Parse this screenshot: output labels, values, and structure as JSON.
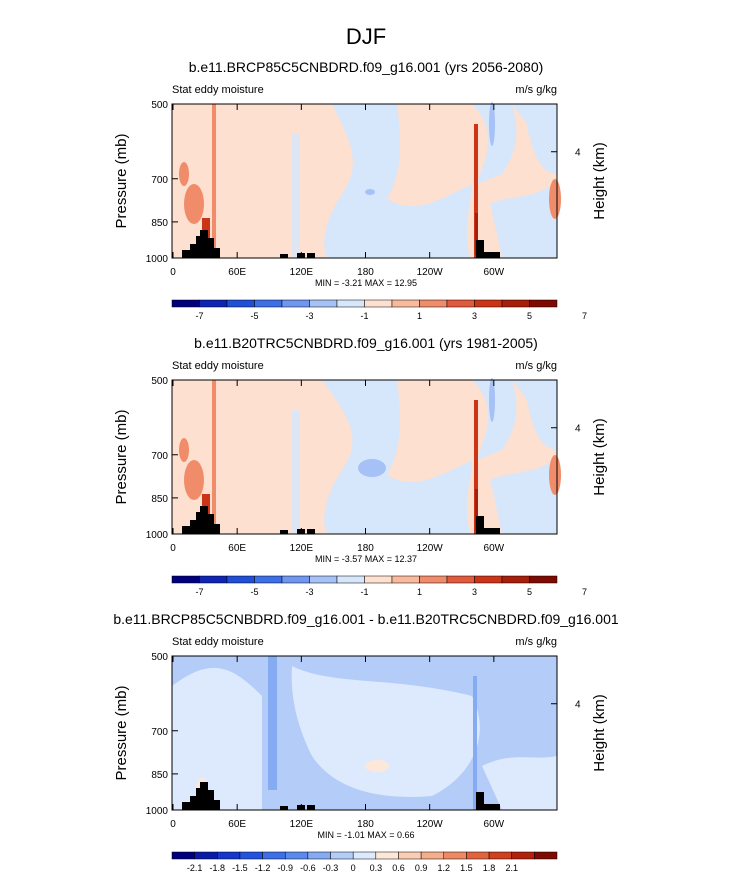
{
  "figure_title": "DJF",
  "chart_data": [
    {
      "type": "heatmap",
      "title": "b.e11.BRCP85C5CNBDRD.f09_g16.001 (yrs 2056-2080)",
      "left_subtitle": "Stat eddy moisture",
      "right_subtitle": "m/s g/kg",
      "ylabel": "Pressure (mb)",
      "y2label": "Height (km)",
      "y_ticks": [
        "500",
        "700",
        "850",
        "1000"
      ],
      "y2_ticks": [
        "4"
      ],
      "x_ticks": [
        "0",
        "60E",
        "120E",
        "180",
        "120W",
        "60W"
      ],
      "stats": "MIN = -3.21 MAX = 12.95",
      "colorbar_labels": [
        "-7",
        "-5",
        "-3",
        "-1",
        "1",
        "3",
        "5",
        "7"
      ],
      "colors": [
        "#00007f",
        "#0d24b4",
        "#1f4ed8",
        "#3d6fe9",
        "#6f96f1",
        "#a6c1f6",
        "#d6e6fb",
        "#fde0cf",
        "#f8b99c",
        "#f08c6a",
        "#e25a3c",
        "#cc3417",
        "#a81e0a",
        "#7f0a02"
      ]
    },
    {
      "type": "heatmap",
      "title": "b.e11.B20TRC5CNBDRD.f09_g16.001 (yrs 1981-2005)",
      "left_subtitle": "Stat eddy moisture",
      "right_subtitle": "m/s g/kg",
      "ylabel": "Pressure (mb)",
      "y2label": "Height (km)",
      "y_ticks": [
        "500",
        "700",
        "850",
        "1000"
      ],
      "y2_ticks": [
        "4"
      ],
      "x_ticks": [
        "0",
        "60E",
        "120E",
        "180",
        "120W",
        "60W"
      ],
      "stats": "MIN = -3.57 MAX = 12.37",
      "colorbar_labels": [
        "-7",
        "-5",
        "-3",
        "-1",
        "1",
        "3",
        "5",
        "7"
      ],
      "colors": [
        "#00007f",
        "#0d24b4",
        "#1f4ed8",
        "#3d6fe9",
        "#6f96f1",
        "#a6c1f6",
        "#d6e6fb",
        "#fde0cf",
        "#f8b99c",
        "#f08c6a",
        "#e25a3c",
        "#cc3417",
        "#a81e0a",
        "#7f0a02"
      ]
    },
    {
      "type": "heatmap",
      "title": "b.e11.BRCP85C5CNBDRD.f09_g16.001 - b.e11.B20TRC5CNBDRD.f09_g16.001",
      "left_subtitle": "Stat eddy moisture",
      "right_subtitle": "m/s g/kg",
      "ylabel": "Pressure (mb)",
      "y2label": "Height (km)",
      "y_ticks": [
        "500",
        "700",
        "850",
        "1000"
      ],
      "y2_ticks": [
        "4"
      ],
      "x_ticks": [
        "0",
        "60E",
        "120E",
        "180",
        "120W",
        "60W"
      ],
      "stats": "MIN = -1.01 MAX = 0.66",
      "colorbar_labels": [
        "-2.1",
        "-1.8",
        "-1.5",
        "-1.2",
        "-0.9",
        "-0.6",
        "-0.3",
        "0",
        "0.3",
        "0.6",
        "0.9",
        "1.2",
        "1.5",
        "1.8",
        "2.1"
      ],
      "colors": [
        "#00007f",
        "#0a1aa8",
        "#1436cc",
        "#2452e0",
        "#3d6fe9",
        "#5a8aef",
        "#85abf3",
        "#b3cdf8",
        "#dde9fc",
        "#fde7d8",
        "#fbcdb5",
        "#f6ad8c",
        "#ee8964",
        "#e2643f",
        "#d13f1f",
        "#b3200c",
        "#7f0a02"
      ]
    }
  ]
}
